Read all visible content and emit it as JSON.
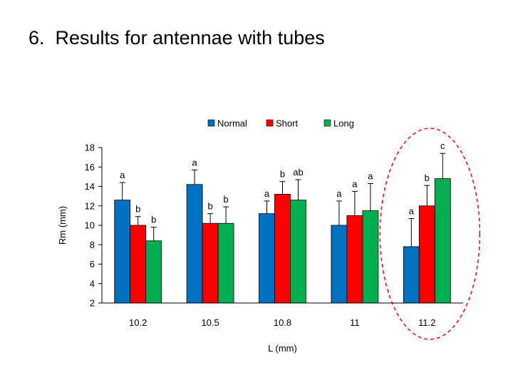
{
  "slide": {
    "title": "6.  Results for antennae with tubes"
  },
  "chart_data": {
    "type": "bar",
    "title": "",
    "xlabel": "L (mm)",
    "ylabel": "Rm (mm)",
    "ylim": [
      2,
      18
    ],
    "yticks": [
      2,
      4,
      6,
      8,
      10,
      12,
      14,
      16,
      18
    ],
    "categories": [
      "10.2",
      "10.5",
      "10.8",
      "11",
      "11.2"
    ],
    "legend_position": "top-center",
    "grid": false,
    "error_bars": "upper",
    "series": [
      {
        "name": "Normal",
        "color": "#0070C0",
        "values": [
          12.6,
          14.2,
          11.2,
          10.0,
          7.8
        ],
        "errors": [
          1.8,
          1.5,
          1.3,
          2.5,
          2.9
        ],
        "labels": [
          "a",
          "a",
          "a",
          "a",
          "a"
        ]
      },
      {
        "name": "Short",
        "color": "#FF0000",
        "values": [
          10.0,
          10.2,
          13.2,
          11.0,
          12.0
        ],
        "errors": [
          0.9,
          1.0,
          1.3,
          2.5,
          2.1
        ],
        "labels": [
          "b",
          "b",
          "b",
          "a",
          "b"
        ]
      },
      {
        "name": "Long",
        "color": "#00B050",
        "values": [
          8.4,
          10.2,
          12.6,
          11.5,
          14.8
        ],
        "errors": [
          1.4,
          1.7,
          2.1,
          2.8,
          2.6
        ],
        "labels": [
          "b",
          "b",
          "ab",
          "a",
          "c"
        ]
      }
    ],
    "highlight": {
      "category": "11.2",
      "style": "dashed-ellipse",
      "color": "#FF0000"
    }
  }
}
